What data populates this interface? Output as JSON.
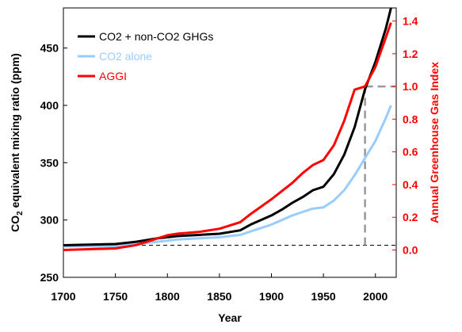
{
  "chart_data": {
    "type": "line",
    "xlabel": "Year",
    "ylabel_left": {
      "main": "CO",
      "sub": "2",
      "rest": " equivalent mixing ratio (ppm)"
    },
    "ylabel_right": "Annual Greenhouse Gas Index",
    "xlim": [
      1700,
      2020
    ],
    "ylim_left": [
      250,
      485
    ],
    "ylim_right": [
      -0.167,
      1.48
    ],
    "x_ticks": [
      1700,
      1750,
      1800,
      1850,
      1900,
      1950,
      2000
    ],
    "y_ticks_left": [
      250,
      300,
      350,
      400,
      450
    ],
    "y_ticks_right": [
      0.0,
      0.2,
      0.4,
      0.6,
      0.8,
      1.0,
      1.2,
      1.4
    ],
    "y_tick_labels_right": [
      "0.0",
      "0.2",
      "0.4",
      "0.6",
      "0.8",
      "1.0",
      "1.2",
      "1.4"
    ],
    "legend_position": "top-left",
    "reference_lines": [
      {
        "axis": "left",
        "y": 278,
        "style": "dashed",
        "color": "#000000"
      },
      {
        "from_x": 1990,
        "to_x": 2020,
        "y_right": 1.0,
        "style": "dashed",
        "color": "#999999"
      },
      {
        "x": 1990,
        "from_y_left": 278,
        "to_y_right": 1.0,
        "style": "dashed",
        "color": "#999999"
      }
    ],
    "series": [
      {
        "name": "CO2 + non-CO2 GHGs",
        "color": "#000000",
        "axis": "left",
        "x": [
          1700,
          1750,
          1770,
          1790,
          1800,
          1810,
          1830,
          1850,
          1870,
          1880,
          1900,
          1910,
          1920,
          1930,
          1940,
          1950,
          1960,
          1970,
          1980,
          1990,
          2000,
          2010,
          2015
        ],
        "y": [
          278,
          279,
          281,
          284,
          285,
          286,
          287,
          288,
          291,
          296,
          304,
          309,
          315,
          320,
          326,
          329,
          340,
          357,
          381,
          414,
          438,
          467,
          485
        ]
      },
      {
        "name": "CO2 alone",
        "color": "#99ccff",
        "axis": "left",
        "x": [
          1700,
          1750,
          1770,
          1790,
          1800,
          1810,
          1830,
          1850,
          1870,
          1880,
          1900,
          1910,
          1920,
          1930,
          1940,
          1950,
          1960,
          1970,
          1980,
          1990,
          2000,
          2010,
          2015
        ],
        "y": [
          277,
          277,
          279,
          281,
          282,
          283,
          284,
          285,
          287,
          290,
          296,
          300,
          304,
          307,
          310,
          311,
          317,
          326,
          339,
          354,
          369,
          389,
          400
        ]
      },
      {
        "name": "AGGI",
        "color": "#ff0000",
        "axis": "right",
        "x": [
          1700,
          1750,
          1770,
          1790,
          1800,
          1810,
          1830,
          1850,
          1870,
          1880,
          1900,
          1910,
          1920,
          1930,
          1940,
          1950,
          1960,
          1970,
          1980,
          1990,
          2000,
          2010,
          2015
        ],
        "y": [
          0.0,
          0.01,
          0.03,
          0.07,
          0.09,
          0.1,
          0.11,
          0.13,
          0.17,
          0.22,
          0.31,
          0.36,
          0.41,
          0.47,
          0.52,
          0.55,
          0.64,
          0.79,
          0.98,
          1.0,
          1.12,
          1.3,
          1.39
        ]
      }
    ]
  }
}
